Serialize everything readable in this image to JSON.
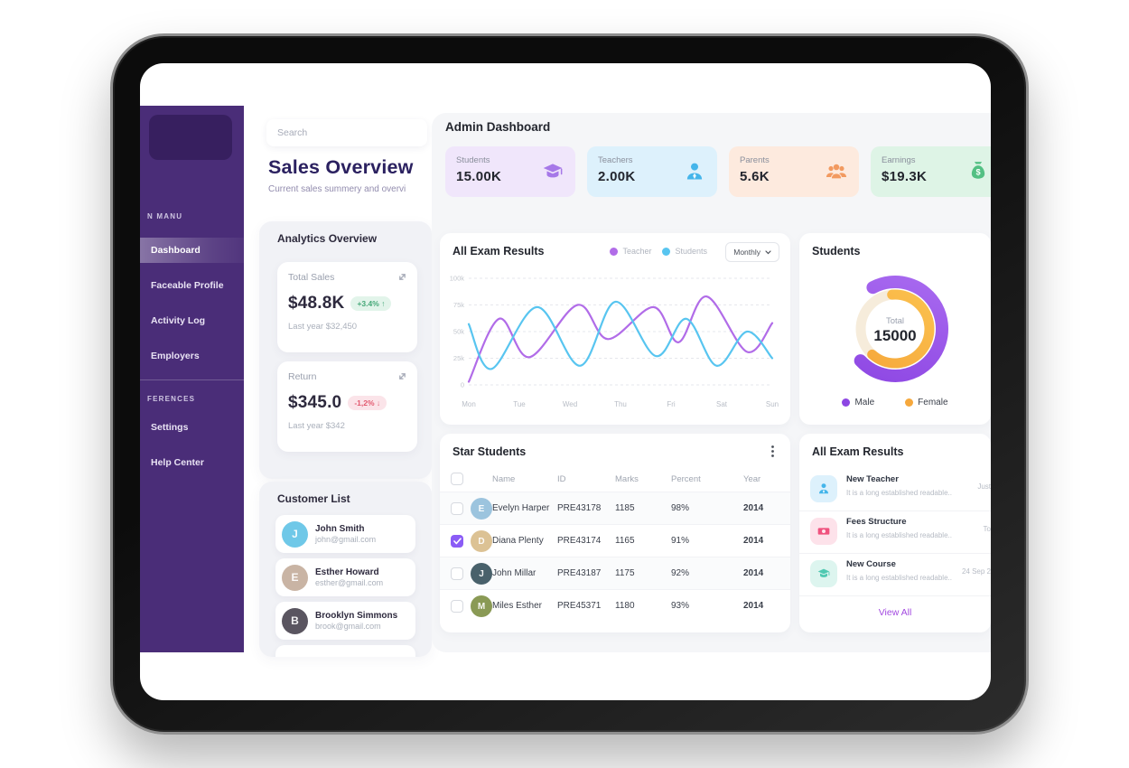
{
  "sidebar": {
    "section1_label": "N MANU",
    "items": [
      {
        "label": "Dashboard",
        "active": true
      },
      {
        "label": "Faceable Profile",
        "active": false
      },
      {
        "label": "Activity Log",
        "active": false
      },
      {
        "label": "Employers",
        "active": false
      }
    ],
    "section2_label": "FERENCES",
    "items2": [
      {
        "label": "Settings",
        "active": false
      },
      {
        "label": "Help Center",
        "active": false
      }
    ]
  },
  "sales": {
    "search_placeholder": "Search",
    "title": "Sales Overview",
    "subtitle": "Current sales summery and overvi",
    "analytics": {
      "heading": "Analytics Overview",
      "cards": [
        {
          "label": "Total Sales",
          "value": "$48.8K",
          "delta": "+3.4% ↑",
          "delta_dir": "up",
          "footnote": "Last year $32,450"
        },
        {
          "label": "Return",
          "value": "$345.0",
          "delta": "-1,2% ↓",
          "delta_dir": "down",
          "footnote": "Last year $342"
        }
      ]
    },
    "customers": {
      "heading": "Customer List",
      "items": [
        {
          "name": "John Smith",
          "email": "john@gmail.com",
          "avatar_color": "#6fc8e8"
        },
        {
          "name": "Esther Howard",
          "email": "esther@gmail.com",
          "avatar_color": "#c9b4a4"
        },
        {
          "name": "Brooklyn Simmons",
          "email": "brook@gmail.com",
          "avatar_color": "#5a5560"
        }
      ]
    }
  },
  "admin": {
    "title": "Admin Dashboard",
    "stats": [
      {
        "label": "Students",
        "value": "15.00K",
        "bg": "#f0e6fb",
        "icon": "graduation-cap",
        "icon_color": "#a678e8"
      },
      {
        "label": "Teachers",
        "value": "2.00K",
        "bg": "#ddf1fc",
        "icon": "teacher-person",
        "icon_color": "#45b5ea"
      },
      {
        "label": "Parents",
        "value": "5.6K",
        "bg": "#fdeade",
        "icon": "people-group",
        "icon_color": "#f29a60"
      },
      {
        "label": "Earnings",
        "value": "$19.3K",
        "bg": "#def4e6",
        "icon": "money-bag",
        "icon_color": "#53c083"
      }
    ],
    "exam_chart": {
      "title": "All Exam Results",
      "range_selector": "Monthly",
      "y_ticks": [
        "100k",
        "75k",
        "50k",
        "25k",
        "0"
      ],
      "x_labels": [
        "Mon",
        "Tue",
        "Wed",
        "Thu",
        "Fri",
        "Sat",
        "Sun"
      ],
      "ymax": 100,
      "series": [
        {
          "name": "Teacher",
          "color": "#b16ce8",
          "points": [
            [
              0,
              3
            ],
            [
              0.6,
              62
            ],
            [
              1.2,
              26
            ],
            [
              2.15,
              75
            ],
            [
              2.75,
              43
            ],
            [
              3.65,
              73
            ],
            [
              4.15,
              40
            ],
            [
              4.7,
              83
            ],
            [
              5.5,
              31
            ],
            [
              6,
              58
            ]
          ]
        },
        {
          "name": "Students",
          "color": "#58c5f0",
          "points": [
            [
              0,
              57
            ],
            [
              0.45,
              15
            ],
            [
              1.35,
              73
            ],
            [
              2.2,
              18
            ],
            [
              2.9,
              78
            ],
            [
              3.7,
              27
            ],
            [
              4.3,
              62
            ],
            [
              4.9,
              18
            ],
            [
              5.5,
              50
            ],
            [
              6,
              25
            ]
          ]
        }
      ]
    },
    "donut": {
      "title": "Students",
      "total_label": "Total",
      "total_value": "15000",
      "segments": [
        {
          "label": "Male",
          "color": "#8d46e3",
          "color2": "#a96bf0",
          "pct": 71,
          "rotate": -118
        },
        {
          "label": "Female",
          "color": "#f6a83c",
          "color2": "#fbc14e",
          "pct": 63,
          "rotate": -95
        }
      ],
      "track_color": "#f6ecdb"
    },
    "star_students": {
      "title": "Star Students",
      "columns": [
        "Name",
        "ID",
        "Marks",
        "Percent",
        "Year"
      ],
      "rows": [
        {
          "checked": false,
          "name": "Evelyn Harper",
          "id": "PRE43178",
          "marks": "1185",
          "percent": "98%",
          "year": "2014",
          "avatar_color": "#9cc4de"
        },
        {
          "checked": true,
          "name": "Diana Plenty",
          "id": "PRE43174",
          "marks": "1165",
          "percent": "91%",
          "year": "2014",
          "avatar_color": "#dcc294"
        },
        {
          "checked": false,
          "name": "John Millar",
          "id": "PRE43187",
          "marks": "1175",
          "percent": "92%",
          "year": "2014",
          "avatar_color": "#49616b"
        },
        {
          "checked": false,
          "name": "Miles Esther",
          "id": "PRE45371",
          "marks": "1180",
          "percent": "93%",
          "year": "2014",
          "avatar_color": "#8a9a55"
        }
      ]
    },
    "notifications": {
      "title": "All Exam Results",
      "items": [
        {
          "title": "New Teacher",
          "desc": "It is a long established readable..",
          "time": "Just",
          "icon": "teacher-person",
          "icon_color": "#45b5ea",
          "icon_bg": "#ddf1fc"
        },
        {
          "title": "Fees Structure",
          "desc": "It is a long established readable..",
          "time": "To",
          "icon": "banknote",
          "icon_color": "#f0527e",
          "icon_bg": "#fde2ea"
        },
        {
          "title": "New Course",
          "desc": "It is a long established readable..",
          "time": "24 Sep 2",
          "icon": "graduation-cap",
          "icon_color": "#4fc9b1",
          "icon_bg": "#ddf5ef"
        }
      ],
      "view_all": "View All"
    }
  }
}
